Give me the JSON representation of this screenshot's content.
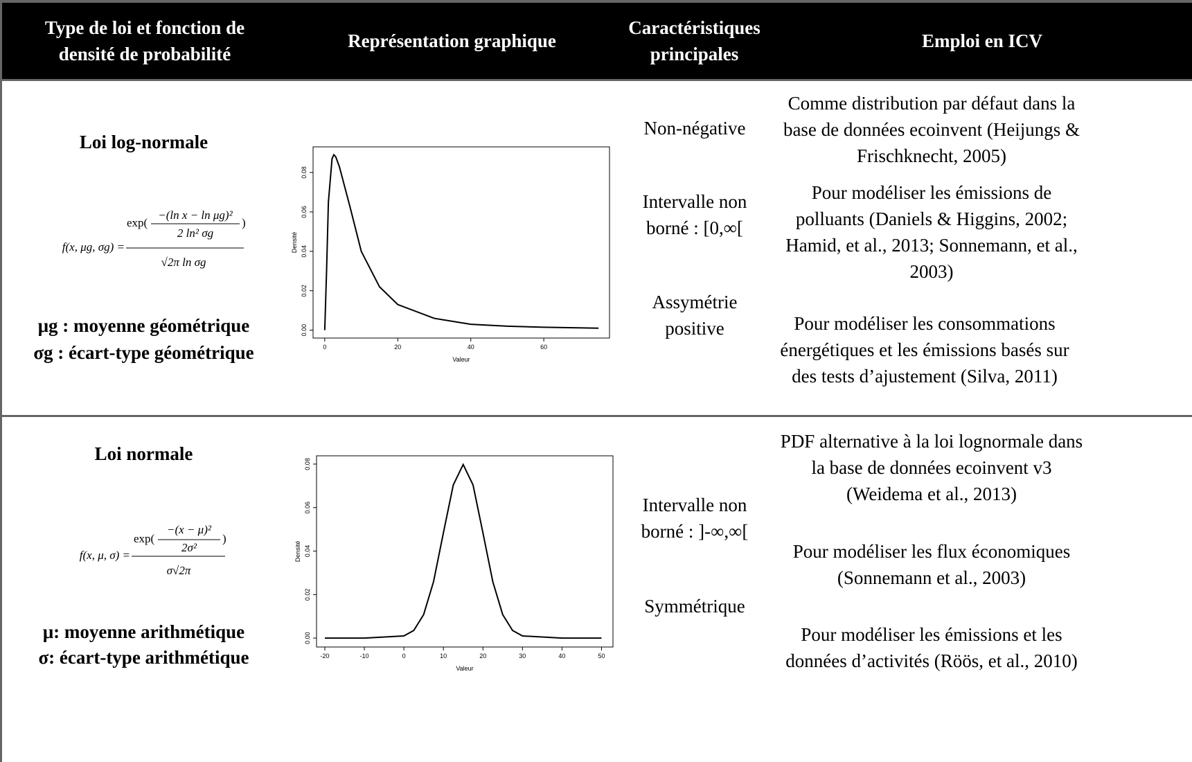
{
  "header": [
    "Type de loi et fonction de densité de probabilité",
    "Représentation graphique",
    "Caractéristiques principales",
    "Emploi en ICV"
  ],
  "rows": [
    {
      "law": "Loi log-normale",
      "formula": {
        "lhs": "f(x, μg, σg) =",
        "prefix": "exp(",
        "num": "−(ln x − ln μg)²",
        "num_den": "2 ln² σg",
        "suffix": ")",
        "den": "√2π ln σg"
      },
      "params": [
        "μg : moyenne géométrique",
        "σg : écart-type géométrique"
      ],
      "characteristics": [
        "Non-négative",
        "Intervalle non borné : [0,∞[",
        "Assymétrie positive"
      ],
      "uses": [
        "Comme distribution par défaut dans la base de données ecoinvent (Heijungs & Frischknecht, 2005)",
        "Pour modéliser les émissions de polluants (Daniels & Higgins, 2002; Hamid, et al., 2013; Sonnemann, et al., 2003)",
        "Pour modéliser les consommations énergétiques et les émissions basés sur des tests d’ajustement (Silva, 2011)"
      ]
    },
    {
      "law": "Loi normale",
      "formula": {
        "lhs": "f(x, μ, σ) =",
        "prefix": "exp(",
        "num": "−(x − μ)²",
        "num_den": "2σ²",
        "suffix": ")",
        "den": "σ√2π"
      },
      "params": [
        "μ: moyenne arithmétique",
        "σ: écart-type arithmétique"
      ],
      "characteristics": [
        "Intervalle non borné : ]-∞,∞[",
        "Symmétrique"
      ],
      "uses": [
        "PDF alternative à la loi lognormale dans la base de données ecoinvent v3 (Weidema et al., 2013)",
        "Pour modéliser les flux économiques (Sonnemann et al., 2003)",
        "Pour modéliser les émissions et les données d’activités (Röös, et al., 2010)"
      ]
    }
  ],
  "chart_data": [
    {
      "type": "line",
      "x_label": "Valeur",
      "y_label": "Densité",
      "x": [
        0,
        0.5,
        1,
        2,
        2.5,
        3,
        4,
        5,
        7,
        10,
        15,
        20,
        30,
        40,
        50,
        60,
        75
      ],
      "values": [
        0,
        0.03,
        0.065,
        0.087,
        0.089,
        0.088,
        0.083,
        0.076,
        0.062,
        0.04,
        0.022,
        0.013,
        0.006,
        0.003,
        0.002,
        0.0015,
        0.001
      ],
      "color": "#000000",
      "xlim": [
        -3.2,
        78
      ],
      "ylim": [
        -0.004,
        0.093
      ],
      "xticks": [
        0,
        20,
        40,
        60
      ],
      "yticks": [
        {
          "value": 0,
          "label": "0.00"
        },
        0.02,
        0.04,
        0.06,
        0.08
      ]
    },
    {
      "type": "line",
      "x_label": "Valeur",
      "y_label": "Densité",
      "x": [
        -20,
        -10,
        0,
        2.5,
        5,
        7.5,
        10,
        12.5,
        15,
        17.5,
        20,
        22.5,
        25,
        27.5,
        30,
        40,
        50
      ],
      "values": [
        0,
        0,
        0.001,
        0.0035,
        0.0108,
        0.0259,
        0.0484,
        0.0704,
        0.0798,
        0.0704,
        0.0484,
        0.0259,
        0.0108,
        0.0035,
        0.001,
        0,
        0
      ],
      "color": "#000000",
      "xlim": [
        -22.1,
        52.9
      ],
      "ylim": [
        -0.0041,
        0.0838
      ],
      "xticks": [
        -20,
        -10,
        0,
        10,
        20,
        30,
        40,
        50
      ],
      "yticks": [
        {
          "value": 0,
          "label": "0.00"
        },
        0.02,
        0.04,
        0.06,
        0.08
      ]
    }
  ]
}
